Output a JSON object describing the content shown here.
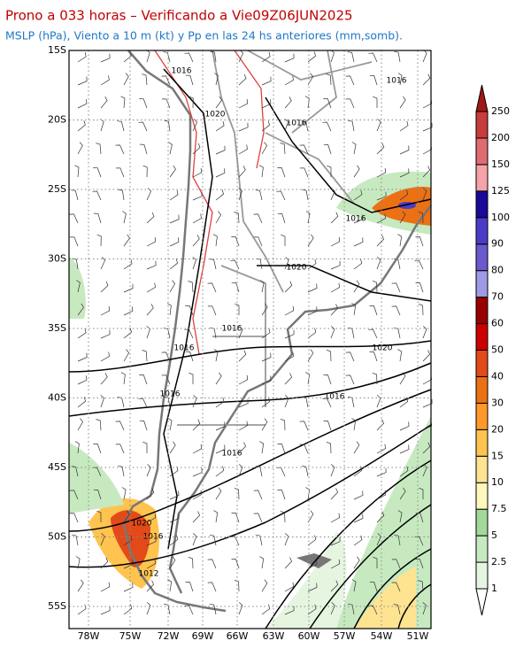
{
  "header": {
    "title": "Prono a 033 horas – Verificando a Vie09Z06JUN2025",
    "subtitle": "MSLP (hPa), Viento a 10 m (kt) y Pp en las 24 hs anteriores (mm,somb)."
  },
  "map": {
    "lat_labels": [
      "15S",
      "20S",
      "25S",
      "30S",
      "35S",
      "40S",
      "45S",
      "50S",
      "55S"
    ],
    "lon_labels": [
      "78W",
      "75W",
      "72W",
      "69W",
      "66W",
      "63W",
      "60W",
      "57W",
      "54W",
      "51W"
    ],
    "isobar_labels": [
      "1016",
      "1016",
      "1020",
      "1016",
      "1016",
      "1020",
      "1016",
      "1016",
      "1020",
      "1016",
      "1016",
      "1016",
      "1020",
      "1016",
      "1012"
    ]
  },
  "colorbar": {
    "levels": [
      1,
      2.5,
      5,
      7.5,
      10,
      15,
      20,
      30,
      40,
      50,
      60,
      70,
      80,
      90,
      100,
      125,
      150,
      200,
      250
    ],
    "colors": [
      "#ffffff",
      "#e5f5e0",
      "#c7e9c0",
      "#a1d99b",
      "#fff7bc",
      "#fee391",
      "#fec44f",
      "#fe9929",
      "#ec7014",
      "#e34a1a",
      "#cc0000",
      "#990000",
      "#9e9ae6",
      "#6a5acd",
      "#4b3cc8",
      "#1a0a99",
      "#f4a3a8",
      "#e06b70",
      "#c83c3c",
      "#a01818"
    ]
  }
}
